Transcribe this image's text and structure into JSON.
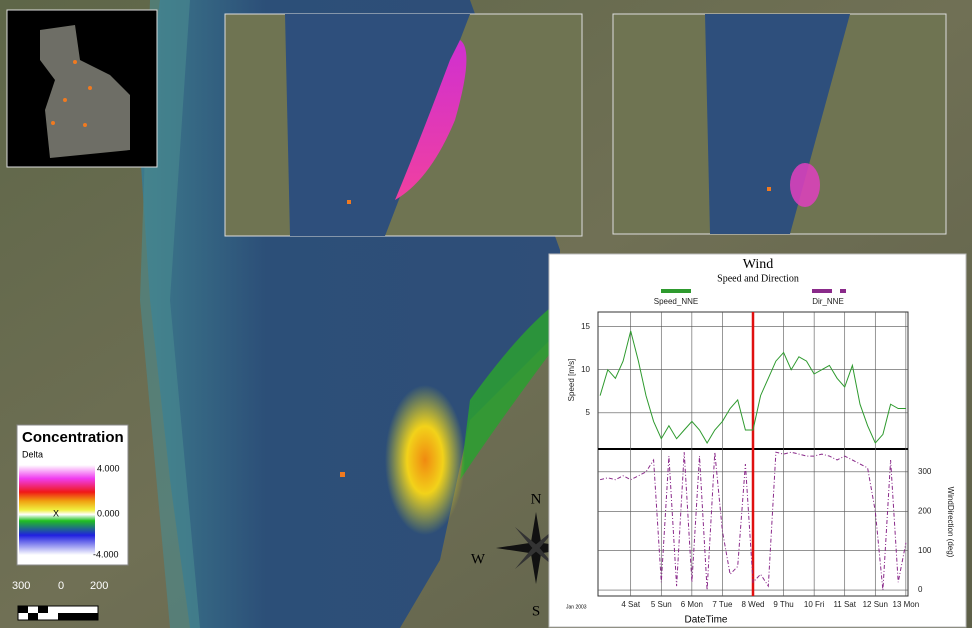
{
  "legend": {
    "title": "Concentration",
    "subtitle": "Delta",
    "labels": [
      "4.000",
      "0.000",
      "-4.000"
    ],
    "marker": "X"
  },
  "scale_bar": [
    "300",
    "0",
    "200"
  ],
  "compass": [
    "N",
    "W",
    "S"
  ],
  "chart_data": {
    "type": "line",
    "title": "Wind",
    "subtitle": "Speed and Direction",
    "x_label": "DateTime",
    "y_label": "Speed [m/s]",
    "y2_label": "WindDirection (deg)",
    "date_label": "Jan 2003",
    "x": [
      3.0,
      3.25,
      3.5,
      3.75,
      4.0,
      4.25,
      4.5,
      4.75,
      5.0,
      5.25,
      5.5,
      5.75,
      6.0,
      6.25,
      6.5,
      6.75,
      7.0,
      7.25,
      7.5,
      7.75,
      8.0,
      8.25,
      8.5,
      8.75,
      9.0,
      9.25,
      9.5,
      9.75,
      10.0,
      10.25,
      10.5,
      10.75,
      11.0,
      11.25,
      11.5,
      11.75,
      12.0,
      12.25,
      12.5,
      12.75,
      13.0
    ],
    "series": [
      {
        "name": "Speed_NNE",
        "color": "#2e9a2e",
        "axis": "y",
        "values": [
          7,
          10,
          9,
          11,
          14.5,
          11,
          7,
          4,
          2,
          3.5,
          2,
          3,
          4,
          3,
          1.5,
          3,
          4,
          5.5,
          6.5,
          3,
          3,
          7,
          9,
          11,
          12,
          10,
          11.5,
          11,
          9.5,
          10,
          10.5,
          9,
          8,
          10.5,
          6,
          3.5,
          1.5,
          2.5,
          6,
          5.5,
          5.5
        ]
      },
      {
        "name": "Dir_NNE",
        "color": "#8a2a8a",
        "axis": "y2",
        "values": [
          280,
          285,
          280,
          290,
          280,
          290,
          300,
          330,
          20,
          340,
          10,
          350,
          20,
          340,
          0,
          350,
          150,
          40,
          60,
          320,
          20,
          40,
          10,
          350,
          345,
          350,
          345,
          340,
          340,
          345,
          340,
          330,
          340,
          330,
          320,
          310,
          200,
          0,
          330,
          20,
          120
        ]
      }
    ],
    "xlim": [
      2.93,
      13.07
    ],
    "xticks": [
      {
        "value": 4,
        "label": "4 Sat"
      },
      {
        "value": 5,
        "label": "5 Sun"
      },
      {
        "value": 6,
        "label": "6 Mon"
      },
      {
        "value": 7,
        "label": "7 Tue"
      },
      {
        "value": 8,
        "label": "8 Wed"
      },
      {
        "value": 9,
        "label": "9 Thu"
      },
      {
        "value": 10,
        "label": "10 Fri"
      },
      {
        "value": 11,
        "label": "11 Sat"
      },
      {
        "value": 12,
        "label": "12 Sun"
      },
      {
        "value": 13,
        "label": "13 Mon"
      }
    ],
    "ylim": [
      0.8,
      16.7
    ],
    "yticks": [
      5,
      10,
      15
    ],
    "y2lim": [
      -15,
      358
    ],
    "y2ticks": [
      0,
      100,
      200,
      300
    ],
    "highlight_x": 8,
    "highlight_color": "#e01010",
    "grid": true
  }
}
